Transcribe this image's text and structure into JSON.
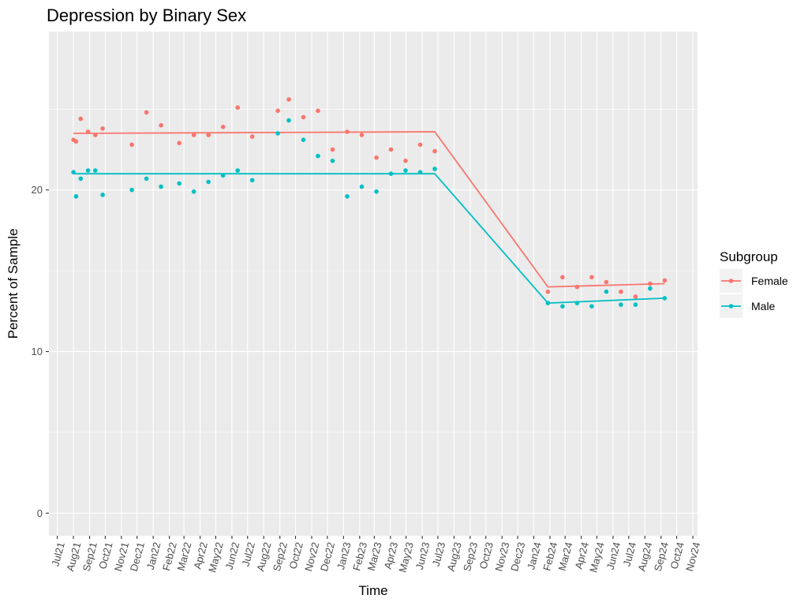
{
  "chart_data": {
    "type": "scatter",
    "title": "Depression by Binary Sex",
    "xlabel": "Time",
    "ylabel": "Percent of Sample",
    "x_ticks": [
      "Jul21",
      "Aug21",
      "Sep21",
      "Oct21",
      "Nov21",
      "Dec21",
      "Jan22",
      "Feb22",
      "Mar22",
      "Apr22",
      "May22",
      "Jun22",
      "Jul22",
      "Aug22",
      "Sep22",
      "Oct22",
      "Nov22",
      "Dec22",
      "Jan23",
      "Feb23",
      "Mar23",
      "Apr23",
      "May23",
      "Jun23",
      "Jul23",
      "Aug23",
      "Sep23",
      "Oct23",
      "Nov23",
      "Dec23",
      "Jan24",
      "Feb24",
      "Mar24",
      "Apr24",
      "May24",
      "Jun24",
      "Jul24",
      "Aug24",
      "Sep24",
      "Oct24",
      "Nov24"
    ],
    "x_range": [
      "2021-06-15",
      "2024-11-10"
    ],
    "y_ticks": [
      0,
      10,
      20
    ],
    "ylim": [
      -1.4,
      29.8
    ],
    "grid": true,
    "legend": {
      "title": "Subgroup",
      "position": "right"
    },
    "series": [
      {
        "name": "Female",
        "color": "#F8766D",
        "points": [
          [
            "2021-08-01",
            23.1
          ],
          [
            "2021-08-06",
            23.0
          ],
          [
            "2021-08-15",
            24.4
          ],
          [
            "2021-08-29",
            23.6
          ],
          [
            "2021-09-12",
            23.4
          ],
          [
            "2021-09-26",
            23.8
          ],
          [
            "2021-11-21",
            22.8
          ],
          [
            "2021-12-19",
            24.8
          ],
          [
            "2022-01-16",
            24.0
          ],
          [
            "2022-02-20",
            22.9
          ],
          [
            "2022-03-20",
            23.4
          ],
          [
            "2022-04-17",
            23.4
          ],
          [
            "2022-05-15",
            23.9
          ],
          [
            "2022-06-12",
            25.1
          ],
          [
            "2022-07-10",
            23.3
          ],
          [
            "2022-08-28",
            24.9
          ],
          [
            "2022-09-18",
            25.6
          ],
          [
            "2022-10-16",
            24.5
          ],
          [
            "2022-11-13",
            24.9
          ],
          [
            "2022-12-11",
            22.5
          ],
          [
            "2023-01-08",
            23.6
          ],
          [
            "2023-02-05",
            23.4
          ],
          [
            "2023-03-05",
            22.0
          ],
          [
            "2023-04-02",
            22.5
          ],
          [
            "2023-04-30",
            21.8
          ],
          [
            "2023-05-28",
            22.8
          ],
          [
            "2023-06-25",
            22.4
          ],
          [
            "2024-01-28",
            13.7
          ],
          [
            "2024-02-25",
            14.6
          ],
          [
            "2024-03-24",
            14.0
          ],
          [
            "2024-04-21",
            14.6
          ],
          [
            "2024-05-19",
            14.3
          ],
          [
            "2024-06-16",
            13.7
          ],
          [
            "2024-07-14",
            13.4
          ],
          [
            "2024-08-11",
            14.2
          ],
          [
            "2024-09-08",
            14.4
          ]
        ],
        "fit": [
          [
            "2021-08-01",
            23.5
          ],
          [
            "2023-06-25",
            23.6
          ],
          [
            "2024-01-28",
            14.0
          ],
          [
            "2024-09-08",
            14.2
          ]
        ]
      },
      {
        "name": "Male",
        "color": "#00BFC4",
        "points": [
          [
            "2021-08-01",
            21.1
          ],
          [
            "2021-08-06",
            19.6
          ],
          [
            "2021-08-15",
            20.7
          ],
          [
            "2021-08-29",
            21.2
          ],
          [
            "2021-09-12",
            21.2
          ],
          [
            "2021-09-26",
            19.7
          ],
          [
            "2021-11-21",
            20.0
          ],
          [
            "2021-12-19",
            20.7
          ],
          [
            "2022-01-16",
            20.2
          ],
          [
            "2022-02-20",
            20.4
          ],
          [
            "2022-03-20",
            19.9
          ],
          [
            "2022-04-17",
            20.5
          ],
          [
            "2022-05-15",
            20.9
          ],
          [
            "2022-06-12",
            21.2
          ],
          [
            "2022-07-10",
            20.6
          ],
          [
            "2022-08-28",
            23.5
          ],
          [
            "2022-09-18",
            24.3
          ],
          [
            "2022-10-16",
            23.1
          ],
          [
            "2022-11-13",
            22.1
          ],
          [
            "2022-12-11",
            21.8
          ],
          [
            "2023-01-08",
            19.6
          ],
          [
            "2023-02-05",
            20.2
          ],
          [
            "2023-03-05",
            19.9
          ],
          [
            "2023-04-02",
            21.0
          ],
          [
            "2023-04-30",
            21.2
          ],
          [
            "2023-05-28",
            21.1
          ],
          [
            "2023-06-25",
            21.3
          ],
          [
            "2024-01-28",
            13.0
          ],
          [
            "2024-02-25",
            12.8
          ],
          [
            "2024-03-24",
            13.0
          ],
          [
            "2024-04-21",
            12.8
          ],
          [
            "2024-05-19",
            13.7
          ],
          [
            "2024-06-16",
            12.9
          ],
          [
            "2024-07-14",
            12.9
          ],
          [
            "2024-08-11",
            13.9
          ],
          [
            "2024-09-08",
            13.3
          ]
        ],
        "fit": [
          [
            "2021-08-01",
            21.0
          ],
          [
            "2023-06-25",
            21.0
          ],
          [
            "2024-01-28",
            13.0
          ],
          [
            "2024-09-08",
            13.3
          ]
        ]
      }
    ]
  }
}
